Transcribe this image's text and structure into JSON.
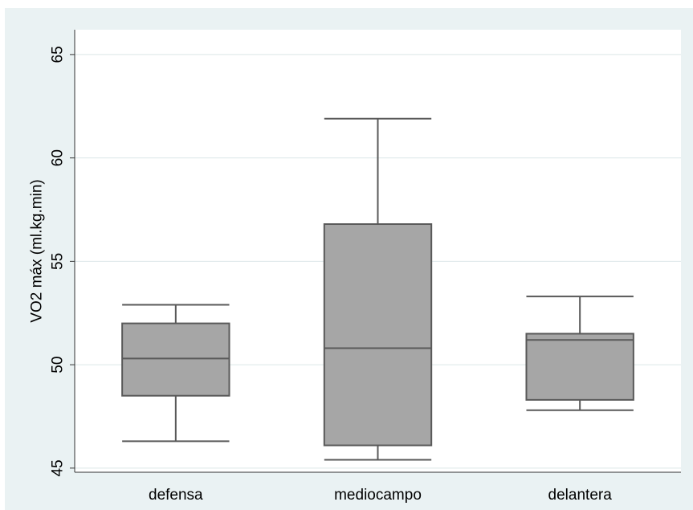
{
  "chart_data": {
    "type": "boxplot",
    "title": "",
    "xlabel": "",
    "ylabel": "VO2 máx (ml.kg.min)",
    "ylim": [
      44.8,
      66.2
    ],
    "yticks": [
      45,
      50,
      55,
      60,
      65
    ],
    "ytick_labels": [
      "45",
      "50",
      "55",
      "60",
      "65"
    ],
    "grid": true,
    "categories": [
      "defensa",
      "mediocampo",
      "delantera"
    ],
    "boxes": [
      {
        "category": "defensa",
        "whisker_low": 46.3,
        "q1": 48.5,
        "median": 50.3,
        "q3": 52.0,
        "whisker_high": 52.9
      },
      {
        "category": "mediocampo",
        "whisker_low": 45.4,
        "q1": 46.1,
        "median": 50.8,
        "q3": 56.8,
        "whisker_high": 61.9
      },
      {
        "category": "delantera",
        "whisker_low": 47.8,
        "q1": 48.3,
        "median": 51.2,
        "q3": 51.5,
        "whisker_high": 53.3
      }
    ],
    "colors": {
      "box_fill": "#a6a6a6",
      "box_line": "#595959",
      "grid": "#dbe6e8",
      "background": "#eaf2f3",
      "plot_area": "#ffffff"
    }
  }
}
